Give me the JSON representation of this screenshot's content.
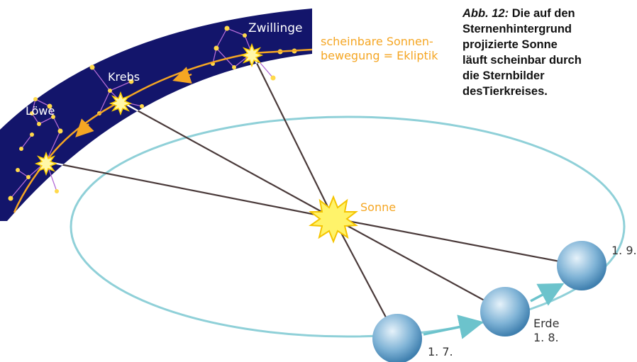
{
  "constellations": [
    "Zwillinge",
    "Krebs",
    "Löwe"
  ],
  "ecliptic_label": [
    "scheinbare Sonnen-",
    "bewegung = Ekliptik"
  ],
  "sun_label": "Sonne",
  "earth_label": "Erde",
  "dates": [
    "1. 7.",
    "1. 8.",
    "1. 9."
  ],
  "caption": {
    "lead": "Abb. 12:",
    "lines": [
      "Die auf den",
      "Sternenhintergrund",
      "projizierte Sonne",
      "läuft scheinbar durch",
      "die Sternbilder",
      "desTierkreises."
    ]
  }
}
